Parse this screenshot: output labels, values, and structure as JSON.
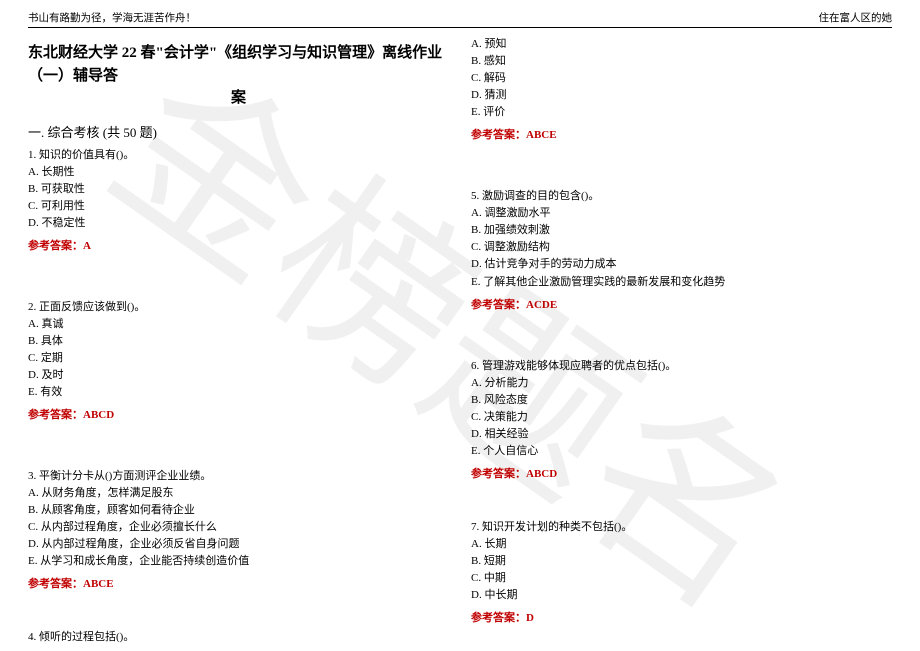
{
  "header": {
    "left": "书山有路勤为径，学海无涯苦作舟！",
    "right": "住在富人区的她"
  },
  "watermark": "金榜题名",
  "title_line1": "东北财经大学 22 春\"会计学\"《组织学习与知识管理》离线作业（一）辅导答",
  "title_line2": "案",
  "section": "一. 综合考核 (共 50 题)",
  "answer_label_prefix": "参考答案：",
  "q1": {
    "stem": "1. 知识的价值具有()。",
    "A": "A. 长期性",
    "B": "B. 可获取性",
    "C": "C. 可利用性",
    "D": "D. 不稳定性",
    "ans": "A"
  },
  "q2": {
    "stem": "2. 正面反馈应该做到()。",
    "A": "A. 真诚",
    "B": "B. 具体",
    "C": "C. 定期",
    "D": "D. 及时",
    "E": "E. 有效",
    "ans": "ABCD"
  },
  "q3": {
    "stem": "3. 平衡计分卡从()方面测评企业业绩。",
    "A": "A. 从财务角度，怎样满足股东",
    "B": "B. 从顾客角度，顾客如何看待企业",
    "C": "C. 从内部过程角度，企业必须擅长什么",
    "D": "D. 从内部过程角度，企业必须反省自身问题",
    "E": "E. 从学习和成长角度，企业能否持续创造价值",
    "ans": "ABCE"
  },
  "q4": {
    "stem": "4. 倾听的过程包括()。",
    "A": "A. 预知",
    "B": "B. 感知",
    "C": "C. 解码",
    "D": "D. 猜测",
    "E": "E. 评价",
    "ans": "ABCE"
  },
  "q5": {
    "stem": "5. 激励调查的目的包含()。",
    "A": "A. 调整激励水平",
    "B": "B. 加强绩效刺激",
    "C": "C. 调整激励结构",
    "D": "D. 估计竞争对手的劳动力成本",
    "E": "E. 了解其他企业激励管理实践的最新发展和变化趋势",
    "ans": "ACDE"
  },
  "q6": {
    "stem": "6. 管理游戏能够体现应聘者的优点包括()。",
    "A": "A. 分析能力",
    "B": "B. 风险态度",
    "C": "C. 决策能力",
    "D": "D. 相关经验",
    "E": "E. 个人自信心",
    "ans": "ABCD"
  },
  "q7": {
    "stem": "7. 知识开发计划的种类不包括()。",
    "A": "A. 长期",
    "B": "B. 短期",
    "C": "C. 中期",
    "D": "D. 中长期",
    "ans": "D"
  }
}
